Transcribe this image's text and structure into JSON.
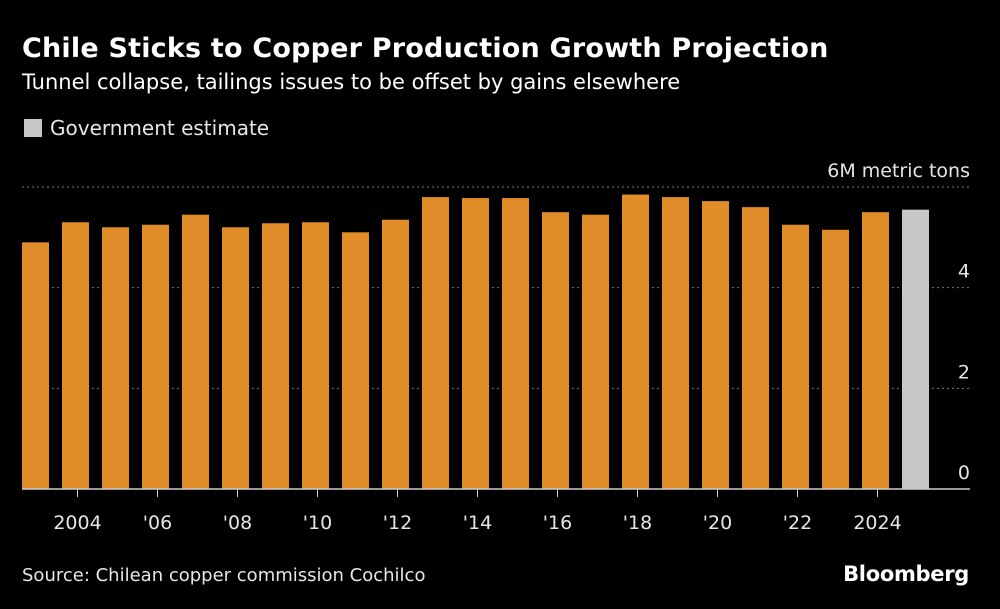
{
  "header": {
    "title": "Chile Sticks to Copper Production Growth Projection",
    "subtitle": "Tunnel collapse, tailings issues to be offset by gains elsewhere"
  },
  "legend": {
    "label": "Government estimate",
    "color": "#c8c8c8"
  },
  "footer": {
    "source": "Source: Chilean copper commission Cochilco",
    "brand": "Bloomberg"
  },
  "colors": {
    "bar": "#e08c28",
    "estimate": "#c8c8c8",
    "grid": "#7a7a7a",
    "axis": "#cccccc"
  },
  "chart_data": {
    "type": "bar",
    "unit_label": "6M metric tons",
    "ylim": [
      0,
      6
    ],
    "yticks": [
      0,
      2,
      4,
      6
    ],
    "ytick_labels": [
      "0",
      "2",
      "4",
      "6M metric tons"
    ],
    "grid": true,
    "x": [
      2003,
      2004,
      2005,
      2006,
      2007,
      2008,
      2009,
      2010,
      2011,
      2012,
      2013,
      2014,
      2015,
      2016,
      2017,
      2018,
      2019,
      2020,
      2021,
      2022,
      2023,
      2024,
      2025
    ],
    "values": [
      4.9,
      5.3,
      5.2,
      5.25,
      5.45,
      5.2,
      5.28,
      5.3,
      5.1,
      5.35,
      5.8,
      5.78,
      5.78,
      5.5,
      5.45,
      5.85,
      5.8,
      5.72,
      5.6,
      5.25,
      5.15,
      5.5,
      5.55
    ],
    "estimate": [
      false,
      false,
      false,
      false,
      false,
      false,
      false,
      false,
      false,
      false,
      false,
      false,
      false,
      false,
      false,
      false,
      false,
      false,
      false,
      false,
      false,
      false,
      true
    ],
    "xtick_years": [
      2004,
      2006,
      2008,
      2010,
      2012,
      2014,
      2016,
      2018,
      2020,
      2022,
      2024
    ],
    "xtick_labels": [
      "2004",
      "'06",
      "'08",
      "'10",
      "'12",
      "'14",
      "'16",
      "'18",
      "'20",
      "'22",
      "2024"
    ]
  }
}
